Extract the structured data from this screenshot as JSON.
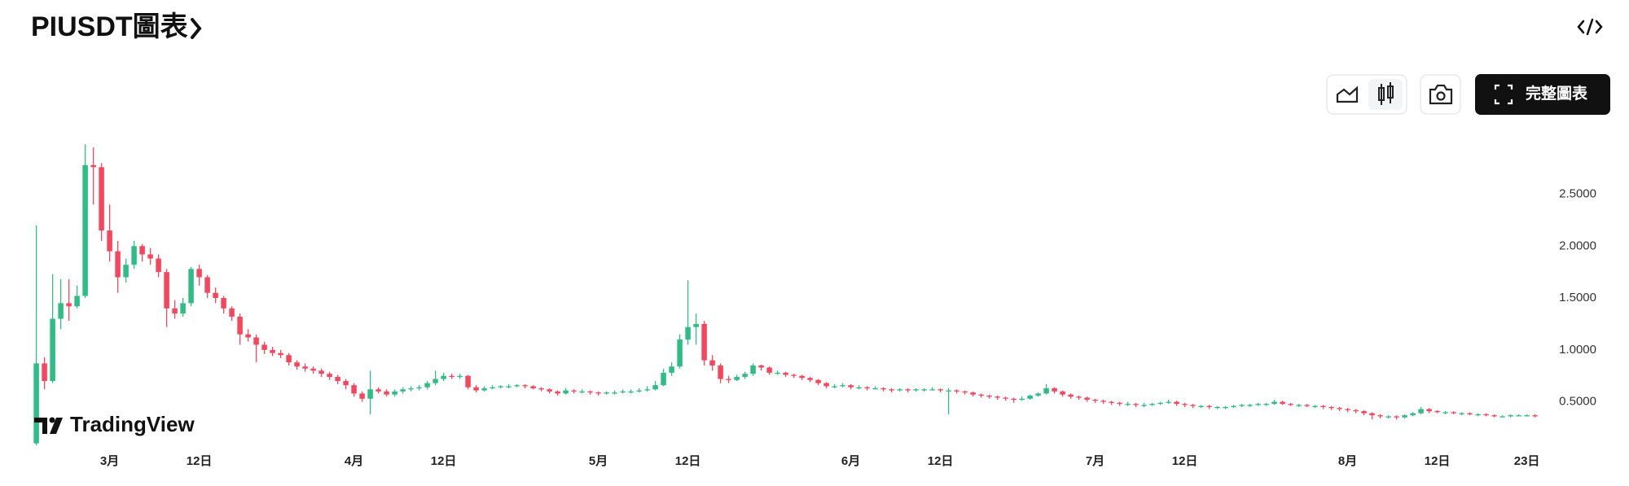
{
  "header": {
    "title": "PIUSDT圖表"
  },
  "toolbar": {
    "full_chart": "完整圖表"
  },
  "watermark": "TradingView",
  "chart_data": {
    "type": "candlestick",
    "up_color": "#2ebd85",
    "down_color": "#f6465d",
    "ylim": [
      0.1,
      3.1
    ],
    "yticks": [
      {
        "value": 0.5,
        "label": "0.5000"
      },
      {
        "value": 1.0,
        "label": "1.0000"
      },
      {
        "value": 1.5,
        "label": "1.5000"
      },
      {
        "value": 2.0,
        "label": "2.0000"
      },
      {
        "value": 2.5,
        "label": "2.5000"
      }
    ],
    "grid": false,
    "categories": [
      null,
      null,
      null,
      null,
      null,
      null,
      null,
      null,
      null,
      "3月",
      null,
      null,
      null,
      null,
      null,
      null,
      null,
      null,
      null,
      null,
      "12日",
      null,
      null,
      null,
      null,
      null,
      null,
      null,
      null,
      null,
      null,
      null,
      null,
      null,
      null,
      null,
      null,
      null,
      null,
      "4月",
      null,
      null,
      null,
      null,
      null,
      null,
      null,
      null,
      null,
      null,
      "12日",
      null,
      null,
      null,
      null,
      null,
      null,
      null,
      null,
      null,
      null,
      null,
      null,
      null,
      null,
      null,
      null,
      null,
      null,
      "5月",
      null,
      null,
      null,
      null,
      null,
      null,
      null,
      null,
      null,
      null,
      "12日",
      null,
      null,
      null,
      null,
      null,
      null,
      null,
      null,
      null,
      null,
      null,
      null,
      null,
      null,
      null,
      null,
      null,
      null,
      null,
      "6月",
      null,
      null,
      null,
      null,
      null,
      null,
      null,
      null,
      null,
      null,
      "12日",
      null,
      null,
      null,
      null,
      null,
      null,
      null,
      null,
      null,
      null,
      null,
      null,
      null,
      null,
      null,
      null,
      null,
      null,
      "7月",
      null,
      null,
      null,
      null,
      null,
      null,
      null,
      null,
      null,
      null,
      "12日",
      null,
      null,
      null,
      null,
      null,
      null,
      null,
      null,
      null,
      null,
      null,
      null,
      null,
      null,
      null,
      null,
      null,
      null,
      null,
      "8月",
      null,
      null,
      null,
      null,
      null,
      null,
      null,
      null,
      null,
      null,
      "12日",
      null,
      null,
      null,
      null,
      null,
      null,
      null,
      null,
      null,
      null,
      "23日"
    ],
    "candles": [
      [
        0.1,
        2.2,
        0.08,
        0.87
      ],
      [
        0.87,
        0.93,
        0.62,
        0.7
      ],
      [
        0.7,
        1.73,
        0.68,
        1.3
      ],
      [
        1.3,
        1.68,
        1.2,
        1.45
      ],
      [
        1.45,
        1.68,
        1.28,
        1.42
      ],
      [
        1.42,
        1.62,
        1.4,
        1.52
      ],
      [
        1.52,
        2.98,
        1.5,
        2.78
      ],
      [
        2.78,
        2.95,
        2.4,
        2.76
      ],
      [
        2.76,
        2.8,
        2.05,
        2.15
      ],
      [
        2.15,
        2.4,
        1.85,
        1.95
      ],
      [
        1.95,
        2.05,
        1.55,
        1.7
      ],
      [
        1.7,
        1.88,
        1.65,
        1.82
      ],
      [
        1.82,
        2.05,
        1.78,
        2.0
      ],
      [
        2.0,
        2.02,
        1.85,
        1.92
      ],
      [
        1.92,
        1.98,
        1.82,
        1.88
      ],
      [
        1.88,
        1.92,
        1.7,
        1.75
      ],
      [
        1.75,
        1.78,
        1.22,
        1.4
      ],
      [
        1.4,
        1.48,
        1.3,
        1.35
      ],
      [
        1.35,
        1.5,
        1.32,
        1.45
      ],
      [
        1.45,
        1.8,
        1.42,
        1.78
      ],
      [
        1.78,
        1.82,
        1.62,
        1.7
      ],
      [
        1.7,
        1.72,
        1.5,
        1.55
      ],
      [
        1.55,
        1.6,
        1.45,
        1.5
      ],
      [
        1.5,
        1.52,
        1.35,
        1.4
      ],
      [
        1.4,
        1.42,
        1.28,
        1.32
      ],
      [
        1.32,
        1.35,
        1.05,
        1.15
      ],
      [
        1.15,
        1.2,
        1.08,
        1.12
      ],
      [
        1.12,
        1.15,
        0.88,
        1.05
      ],
      [
        1.05,
        1.08,
        0.96,
        1.0
      ],
      [
        1.0,
        1.03,
        0.94,
        0.97
      ],
      [
        0.97,
        1.0,
        0.92,
        0.95
      ],
      [
        0.95,
        0.97,
        0.85,
        0.88
      ],
      [
        0.88,
        0.9,
        0.81,
        0.84
      ],
      [
        0.84,
        0.87,
        0.79,
        0.82
      ],
      [
        0.82,
        0.84,
        0.77,
        0.8
      ],
      [
        0.8,
        0.82,
        0.74,
        0.77
      ],
      [
        0.77,
        0.79,
        0.71,
        0.74
      ],
      [
        0.74,
        0.76,
        0.67,
        0.7
      ],
      [
        0.7,
        0.72,
        0.62,
        0.66
      ],
      [
        0.66,
        0.68,
        0.55,
        0.58
      ],
      [
        0.58,
        0.6,
        0.5,
        0.53
      ],
      [
        0.53,
        0.8,
        0.38,
        0.62
      ],
      [
        0.62,
        0.64,
        0.58,
        0.6
      ],
      [
        0.6,
        0.62,
        0.55,
        0.57
      ],
      [
        0.57,
        0.62,
        0.55,
        0.6
      ],
      [
        0.6,
        0.64,
        0.58,
        0.62
      ],
      [
        0.62,
        0.65,
        0.6,
        0.63
      ],
      [
        0.63,
        0.66,
        0.61,
        0.64
      ],
      [
        0.64,
        0.7,
        0.62,
        0.68
      ],
      [
        0.68,
        0.8,
        0.66,
        0.72
      ],
      [
        0.72,
        0.78,
        0.7,
        0.75
      ],
      [
        0.75,
        0.77,
        0.72,
        0.74
      ],
      [
        0.74,
        0.77,
        0.72,
        0.75
      ],
      [
        0.75,
        0.76,
        0.62,
        0.64
      ],
      [
        0.64,
        0.66,
        0.59,
        0.61
      ],
      [
        0.61,
        0.65,
        0.6,
        0.63
      ],
      [
        0.63,
        0.66,
        0.62,
        0.64
      ],
      [
        0.64,
        0.66,
        0.63,
        0.65
      ],
      [
        0.65,
        0.67,
        0.63,
        0.65
      ],
      [
        0.65,
        0.67,
        0.64,
        0.66
      ],
      [
        0.66,
        0.67,
        0.63,
        0.65
      ],
      [
        0.65,
        0.66,
        0.62,
        0.63
      ],
      [
        0.63,
        0.64,
        0.6,
        0.62
      ],
      [
        0.62,
        0.63,
        0.58,
        0.6
      ],
      [
        0.6,
        0.61,
        0.56,
        0.58
      ],
      [
        0.58,
        0.63,
        0.57,
        0.61
      ],
      [
        0.61,
        0.62,
        0.58,
        0.6
      ],
      [
        0.6,
        0.62,
        0.58,
        0.6
      ],
      [
        0.6,
        0.61,
        0.57,
        0.59
      ],
      [
        0.59,
        0.6,
        0.56,
        0.58
      ],
      [
        0.58,
        0.6,
        0.57,
        0.59
      ],
      [
        0.59,
        0.61,
        0.57,
        0.59
      ],
      [
        0.59,
        0.62,
        0.58,
        0.6
      ],
      [
        0.6,
        0.62,
        0.58,
        0.6
      ],
      [
        0.6,
        0.63,
        0.59,
        0.61
      ],
      [
        0.61,
        0.65,
        0.6,
        0.62
      ],
      [
        0.62,
        0.7,
        0.61,
        0.66
      ],
      [
        0.66,
        0.82,
        0.65,
        0.78
      ],
      [
        0.78,
        0.88,
        0.75,
        0.84
      ],
      [
        0.84,
        1.15,
        0.82,
        1.1
      ],
      [
        1.1,
        1.67,
        1.05,
        1.22
      ],
      [
        1.22,
        1.35,
        1.05,
        1.25
      ],
      [
        1.25,
        1.28,
        0.85,
        0.9
      ],
      [
        0.9,
        0.95,
        0.8,
        0.85
      ],
      [
        0.85,
        0.87,
        0.68,
        0.72
      ],
      [
        0.72,
        0.75,
        0.68,
        0.71
      ],
      [
        0.71,
        0.76,
        0.7,
        0.74
      ],
      [
        0.74,
        0.79,
        0.72,
        0.77
      ],
      [
        0.77,
        0.87,
        0.75,
        0.85
      ],
      [
        0.85,
        0.86,
        0.8,
        0.83
      ],
      [
        0.83,
        0.84,
        0.76,
        0.78
      ],
      [
        0.78,
        0.8,
        0.76,
        0.78
      ],
      [
        0.78,
        0.79,
        0.74,
        0.76
      ],
      [
        0.76,
        0.77,
        0.73,
        0.75
      ],
      [
        0.75,
        0.76,
        0.71,
        0.73
      ],
      [
        0.73,
        0.74,
        0.69,
        0.71
      ],
      [
        0.71,
        0.72,
        0.66,
        0.68
      ],
      [
        0.68,
        0.69,
        0.63,
        0.65
      ],
      [
        0.65,
        0.67,
        0.63,
        0.65
      ],
      [
        0.65,
        0.68,
        0.64,
        0.66
      ],
      [
        0.66,
        0.67,
        0.62,
        0.64
      ],
      [
        0.64,
        0.66,
        0.62,
        0.64
      ],
      [
        0.64,
        0.65,
        0.61,
        0.63
      ],
      [
        0.63,
        0.65,
        0.62,
        0.63
      ],
      [
        0.63,
        0.64,
        0.6,
        0.62
      ],
      [
        0.62,
        0.63,
        0.59,
        0.61
      ],
      [
        0.61,
        0.63,
        0.6,
        0.62
      ],
      [
        0.62,
        0.63,
        0.59,
        0.61
      ],
      [
        0.61,
        0.63,
        0.6,
        0.62
      ],
      [
        0.62,
        0.63,
        0.6,
        0.62
      ],
      [
        0.62,
        0.64,
        0.61,
        0.62
      ],
      [
        0.62,
        0.63,
        0.59,
        0.61
      ],
      [
        0.61,
        0.63,
        0.38,
        0.61
      ],
      [
        0.61,
        0.62,
        0.58,
        0.6
      ],
      [
        0.6,
        0.61,
        0.57,
        0.59
      ],
      [
        0.59,
        0.6,
        0.55,
        0.57
      ],
      [
        0.57,
        0.58,
        0.54,
        0.56
      ],
      [
        0.56,
        0.57,
        0.53,
        0.55
      ],
      [
        0.55,
        0.56,
        0.52,
        0.54
      ],
      [
        0.54,
        0.55,
        0.51,
        0.53
      ],
      [
        0.53,
        0.54,
        0.49,
        0.52
      ],
      [
        0.52,
        0.55,
        0.51,
        0.53
      ],
      [
        0.53,
        0.57,
        0.52,
        0.56
      ],
      [
        0.56,
        0.59,
        0.55,
        0.58
      ],
      [
        0.58,
        0.67,
        0.57,
        0.63
      ],
      [
        0.63,
        0.64,
        0.58,
        0.6
      ],
      [
        0.6,
        0.61,
        0.55,
        0.57
      ],
      [
        0.57,
        0.58,
        0.53,
        0.55
      ],
      [
        0.55,
        0.56,
        0.52,
        0.54
      ],
      [
        0.54,
        0.55,
        0.5,
        0.52
      ],
      [
        0.52,
        0.53,
        0.49,
        0.51
      ],
      [
        0.51,
        0.52,
        0.48,
        0.5
      ],
      [
        0.5,
        0.51,
        0.47,
        0.49
      ],
      [
        0.49,
        0.5,
        0.46,
        0.48
      ],
      [
        0.48,
        0.5,
        0.46,
        0.48
      ],
      [
        0.48,
        0.49,
        0.45,
        0.47
      ],
      [
        0.47,
        0.49,
        0.45,
        0.47
      ],
      [
        0.47,
        0.49,
        0.46,
        0.48
      ],
      [
        0.48,
        0.5,
        0.47,
        0.49
      ],
      [
        0.49,
        0.52,
        0.48,
        0.5
      ],
      [
        0.5,
        0.51,
        0.46,
        0.48
      ],
      [
        0.48,
        0.49,
        0.45,
        0.47
      ],
      [
        0.47,
        0.48,
        0.44,
        0.46
      ],
      [
        0.46,
        0.47,
        0.44,
        0.46
      ],
      [
        0.46,
        0.47,
        0.43,
        0.45
      ],
      [
        0.45,
        0.46,
        0.43,
        0.45
      ],
      [
        0.45,
        0.46,
        0.43,
        0.45
      ],
      [
        0.45,
        0.47,
        0.44,
        0.46
      ],
      [
        0.46,
        0.48,
        0.45,
        0.47
      ],
      [
        0.47,
        0.48,
        0.45,
        0.47
      ],
      [
        0.47,
        0.49,
        0.46,
        0.48
      ],
      [
        0.48,
        0.49,
        0.46,
        0.48
      ],
      [
        0.48,
        0.52,
        0.47,
        0.5
      ],
      [
        0.5,
        0.51,
        0.47,
        0.48
      ],
      [
        0.48,
        0.49,
        0.46,
        0.47
      ],
      [
        0.47,
        0.48,
        0.45,
        0.47
      ],
      [
        0.47,
        0.48,
        0.45,
        0.46
      ],
      [
        0.46,
        0.47,
        0.44,
        0.46
      ],
      [
        0.46,
        0.47,
        0.43,
        0.45
      ],
      [
        0.45,
        0.46,
        0.42,
        0.44
      ],
      [
        0.44,
        0.45,
        0.41,
        0.43
      ],
      [
        0.43,
        0.44,
        0.4,
        0.42
      ],
      [
        0.42,
        0.43,
        0.39,
        0.41
      ],
      [
        0.41,
        0.42,
        0.37,
        0.39
      ],
      [
        0.39,
        0.4,
        0.33,
        0.37
      ],
      [
        0.37,
        0.38,
        0.34,
        0.36
      ],
      [
        0.36,
        0.37,
        0.34,
        0.36
      ],
      [
        0.36,
        0.37,
        0.33,
        0.35
      ],
      [
        0.35,
        0.38,
        0.34,
        0.37
      ],
      [
        0.37,
        0.4,
        0.36,
        0.39
      ],
      [
        0.39,
        0.45,
        0.38,
        0.43
      ],
      [
        0.43,
        0.44,
        0.39,
        0.41
      ],
      [
        0.41,
        0.42,
        0.39,
        0.4
      ],
      [
        0.4,
        0.41,
        0.38,
        0.4
      ],
      [
        0.4,
        0.41,
        0.38,
        0.39
      ],
      [
        0.39,
        0.4,
        0.37,
        0.39
      ],
      [
        0.39,
        0.4,
        0.37,
        0.38
      ],
      [
        0.38,
        0.39,
        0.36,
        0.38
      ],
      [
        0.38,
        0.39,
        0.36,
        0.37
      ],
      [
        0.37,
        0.38,
        0.35,
        0.36
      ],
      [
        0.36,
        0.37,
        0.35,
        0.36
      ],
      [
        0.36,
        0.38,
        0.35,
        0.37
      ],
      [
        0.37,
        0.38,
        0.36,
        0.37
      ],
      [
        0.37,
        0.38,
        0.36,
        0.37
      ],
      [
        0.37,
        0.38,
        0.35,
        0.36
      ]
    ]
  }
}
